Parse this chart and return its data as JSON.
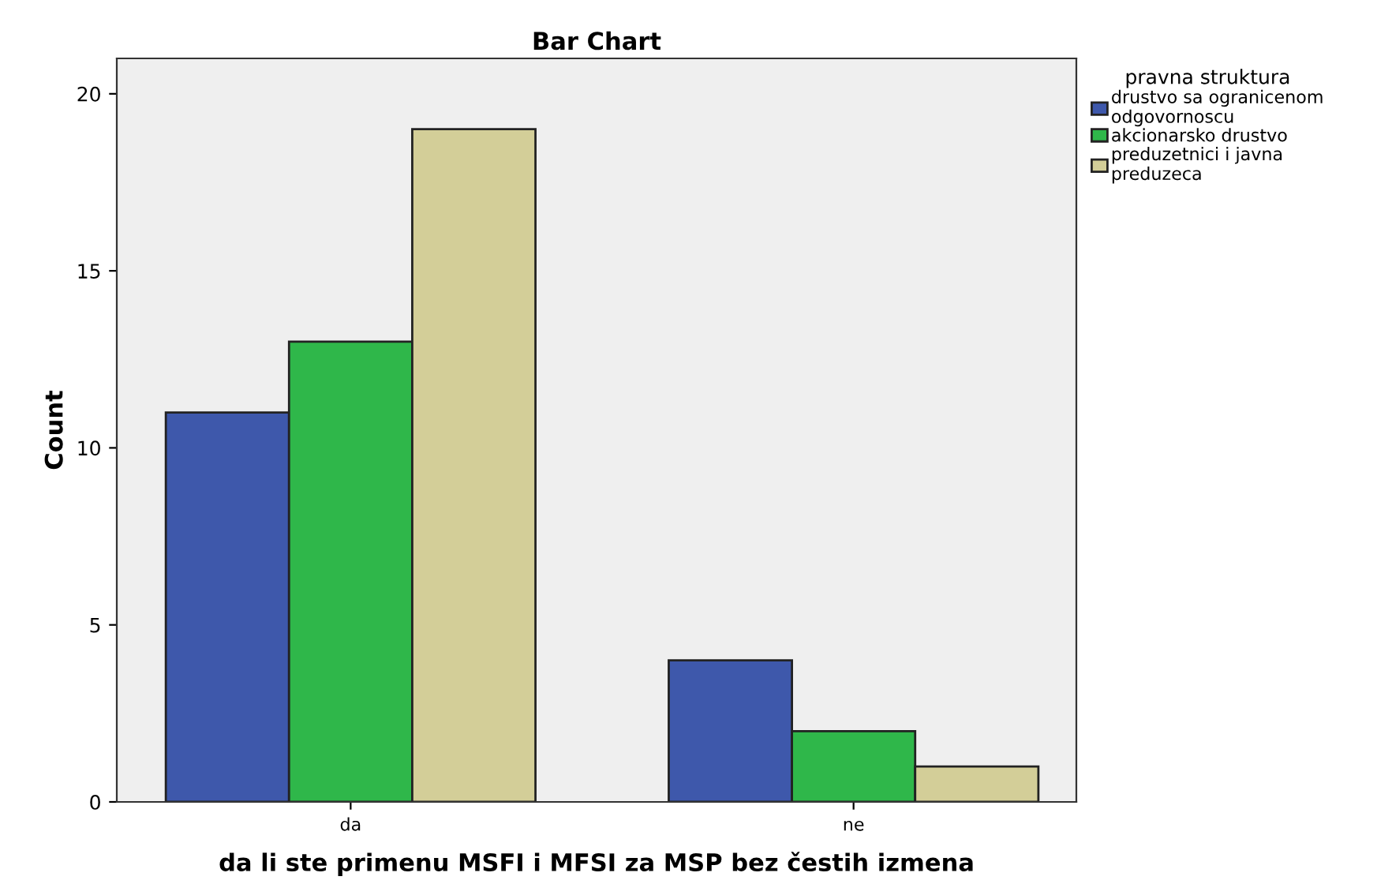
{
  "chart_data": {
    "type": "bar",
    "title": "Bar Chart",
    "xlabel": "da li ste primenu MSFI i MFSI za MSP bez čestih izmena",
    "ylabel": "Count",
    "legend_title": "pravna struktura",
    "categories": [
      "da",
      "ne"
    ],
    "series": [
      {
        "name": "drustvo sa ogranicenom\nodgovornoscu",
        "color": "#3e58ab",
        "values": [
          11,
          4
        ]
      },
      {
        "name": "akcionarsko drustvo",
        "color": "#2fb74a",
        "values": [
          13,
          2
        ]
      },
      {
        "name": "preduzetnici i javna\npreduzeca",
        "color": "#d3ce98",
        "values": [
          19,
          1
        ]
      }
    ],
    "ylim": [
      0,
      21
    ],
    "yticks": [
      0,
      5,
      10,
      15,
      20
    ],
    "grid": false,
    "legend": "right"
  }
}
